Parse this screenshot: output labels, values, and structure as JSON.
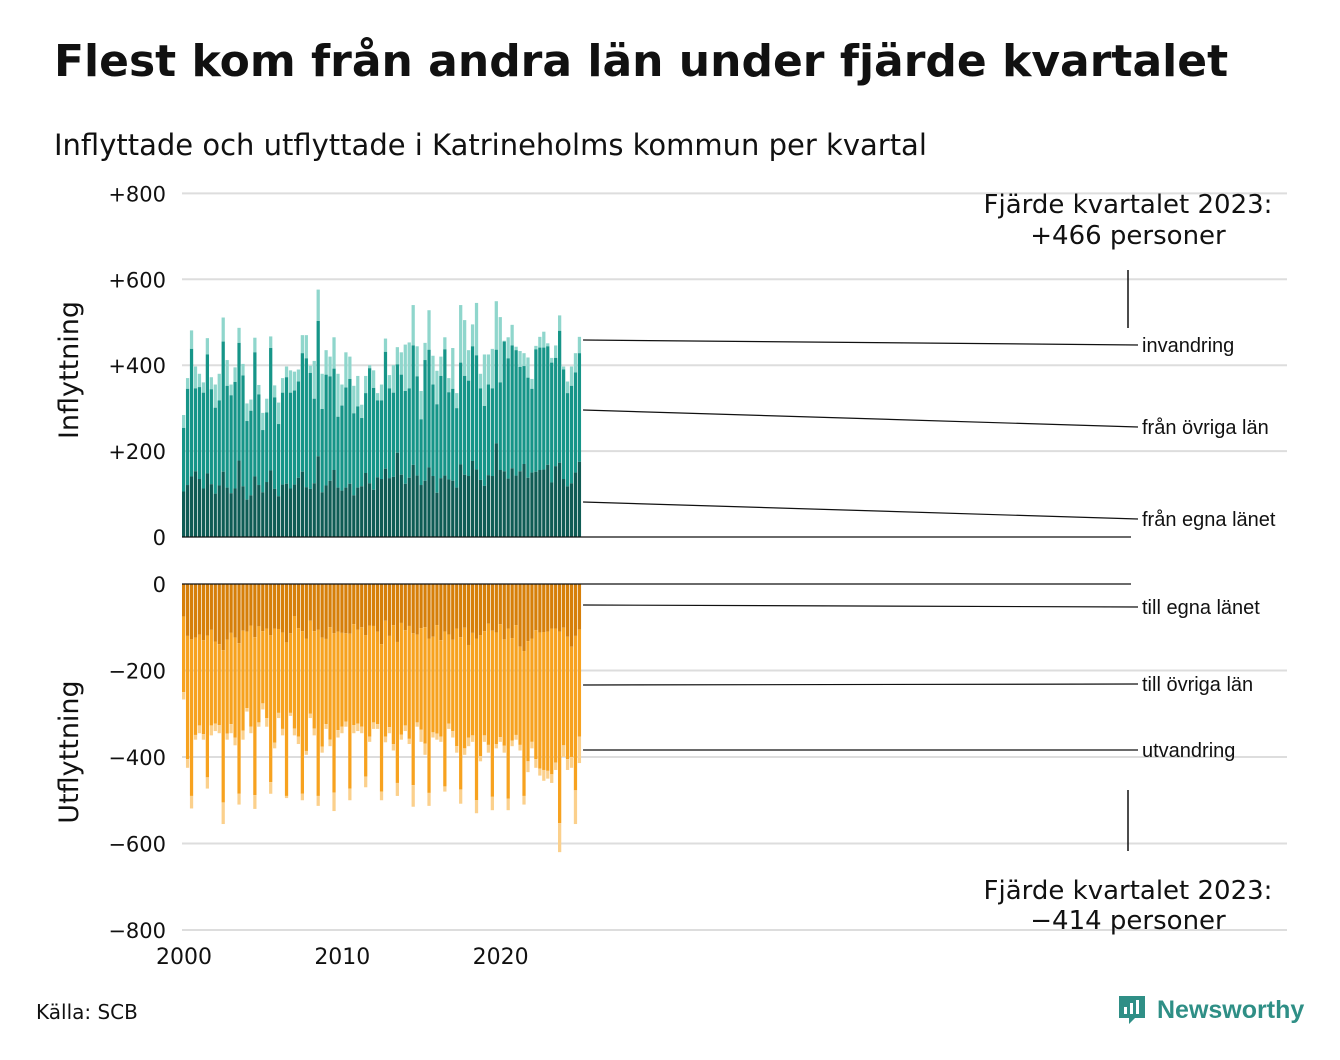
{
  "title": "Flest kom från andra län under fjärde kvartalet",
  "subtitle": "Inflyttade och utflyttade i Katrineholms kommun per kvartal",
  "source": "Källa: SCB",
  "brand": "Newsworthy",
  "colors": {
    "in_egna": "#0f5c55",
    "in_ovriga": "#169588",
    "in_invandring": "#8fd6cc",
    "ut_egna": "#d67f09",
    "ut_ovriga": "#f7a21f",
    "ut_utvandring": "#fbd08c",
    "brand": "#2f8f86"
  },
  "annotations": {
    "top_line1": "Fjärde kvartalet 2023:",
    "top_line2": "+466 personer",
    "bottom_line1": "Fjärde kvartalet 2023:",
    "bottom_line2": "−414 personer"
  },
  "chart_data": {
    "type": "bar",
    "stacked": true,
    "title": "Flest kom från andra län under fjärde kvartalet",
    "subtitle": "Inflyttade och utflyttade i Katrineholms kommun per kvartal",
    "x_start": 2000,
    "x_end": 2023.75,
    "x_unit": "kvartal",
    "x_ticks": [
      {
        "value": 2000,
        "label": "2000"
      },
      {
        "value": 2010,
        "label": "2010"
      },
      {
        "value": 2020,
        "label": "2020"
      }
    ],
    "ylim": [
      -800,
      800
    ],
    "y_ticks": [
      {
        "value": 800,
        "label": "+800"
      },
      {
        "value": 600,
        "label": "+600"
      },
      {
        "value": 400,
        "label": "+400"
      },
      {
        "value": 200,
        "label": "+200"
      },
      {
        "value": 0,
        "label": "0"
      },
      {
        "value": -200,
        "label": "−200"
      },
      {
        "value": -400,
        "label": "−400"
      },
      {
        "value": -600,
        "label": "−600"
      },
      {
        "value": -800,
        "label": "−800"
      }
    ],
    "panels": [
      {
        "name": "inflyttning",
        "ylabel": "Inflyttning"
      },
      {
        "name": "utflyttning",
        "ylabel": "Utflyttning"
      }
    ],
    "inflyttning_totals": [
      284,
      370,
      481,
      397,
      380,
      360,
      463,
      372,
      355,
      380,
      511,
      412,
      355,
      395,
      487,
      403,
      311,
      320,
      464,
      354,
      289,
      322,
      467,
      353,
      313,
      370,
      397,
      388,
      385,
      390,
      470,
      470,
      399,
      410,
      576,
      380,
      435,
      420,
      465,
      380,
      355,
      430,
      420,
      352,
      375,
      308,
      375,
      400,
      388,
      335,
      355,
      462,
      377,
      400,
      442,
      430,
      448,
      453,
      540,
      444,
      340,
      452,
      528,
      422,
      387,
      420,
      465,
      370,
      440,
      335,
      540,
      505,
      435,
      495,
      545,
      380,
      425,
      425,
      438,
      549,
      512,
      457,
      465,
      494,
      443,
      433,
      428,
      418,
      368,
      445,
      466,
      478,
      451,
      417,
      446,
      516,
      397,
      362,
      397,
      428,
      466
    ],
    "inflyttning_ovriga_tops": [
      254,
      345,
      438,
      346,
      349,
      336,
      425,
      344,
      301,
      318,
      455,
      352,
      330,
      361,
      452,
      376,
      270,
      294,
      430,
      332,
      249,
      290,
      440,
      325,
      263,
      336,
      372,
      336,
      341,
      362,
      428,
      416,
      382,
      322,
      503,
      298,
      378,
      374,
      392,
      280,
      306,
      348,
      368,
      288,
      304,
      277,
      335,
      393,
      347,
      318,
      318,
      431,
      346,
      336,
      402,
      378,
      340,
      346,
      446,
      374,
      274,
      412,
      436,
      355,
      309,
      375,
      437,
      337,
      345,
      300,
      406,
      375,
      364,
      444,
      423,
      346,
      305,
      355,
      346,
      436,
      360,
      455,
      416,
      446,
      435,
      396,
      398,
      371,
      345,
      437,
      441,
      441,
      444,
      406,
      417,
      480,
      390,
      335,
      352,
      383,
      428
    ],
    "inflyttning_egna": [
      106,
      121,
      141,
      153,
      135,
      113,
      148,
      123,
      101,
      120,
      152,
      115,
      102,
      113,
      178,
      118,
      87,
      97,
      141,
      121,
      104,
      128,
      155,
      112,
      95,
      122,
      124,
      113,
      122,
      138,
      152,
      116,
      112,
      125,
      188,
      104,
      120,
      131,
      156,
      115,
      108,
      115,
      124,
      97,
      115,
      118,
      149,
      125,
      110,
      139,
      135,
      159,
      137,
      140,
      196,
      145,
      124,
      138,
      168,
      143,
      121,
      131,
      162,
      142,
      103,
      137,
      143,
      134,
      131,
      115,
      169,
      145,
      142,
      177,
      157,
      133,
      119,
      144,
      142,
      218,
      156,
      153,
      136,
      160,
      143,
      153,
      170,
      138,
      150,
      152,
      156,
      157,
      168,
      127,
      165,
      173,
      135,
      118,
      125,
      150,
      175
    ],
    "utflyttning_totals": [
      -267,
      -425,
      -519,
      -360,
      -345,
      -360,
      -473,
      -350,
      -340,
      -345,
      -555,
      -360,
      -345,
      -373,
      -510,
      -360,
      -295,
      -345,
      -520,
      -330,
      -290,
      -330,
      -485,
      -380,
      -310,
      -350,
      -495,
      -305,
      -350,
      -370,
      -500,
      -395,
      -310,
      -350,
      -513,
      -390,
      -335,
      -375,
      -525,
      -355,
      -345,
      -330,
      -500,
      -345,
      -340,
      -345,
      -470,
      -365,
      -335,
      -335,
      -500,
      -366,
      -345,
      -385,
      -490,
      -360,
      -340,
      -370,
      -515,
      -330,
      -365,
      -395,
      -513,
      -355,
      -360,
      -365,
      -480,
      -335,
      -355,
      -390,
      -508,
      -395,
      -375,
      -365,
      -530,
      -410,
      -365,
      -390,
      -523,
      -380,
      -365,
      -390,
      -523,
      -375,
      -360,
      -385,
      -510,
      -435,
      -380,
      -425,
      -443,
      -455,
      -450,
      -460,
      -430,
      -620,
      -400,
      -430,
      -425,
      -555,
      -414
    ],
    "utflyttning_ovriga_bottoms": [
      -250,
      -405,
      -490,
      -349,
      -327,
      -347,
      -447,
      -327,
      -323,
      -326,
      -505,
      -346,
      -324,
      -355,
      -485,
      -339,
      -287,
      -330,
      -488,
      -320,
      -276,
      -310,
      -458,
      -367,
      -298,
      -335,
      -490,
      -298,
      -334,
      -353,
      -485,
      -386,
      -300,
      -334,
      -490,
      -376,
      -324,
      -360,
      -482,
      -338,
      -330,
      -318,
      -473,
      -326,
      -323,
      -330,
      -445,
      -353,
      -320,
      -324,
      -480,
      -353,
      -331,
      -370,
      -460,
      -348,
      -327,
      -358,
      -465,
      -320,
      -337,
      -369,
      -483,
      -343,
      -346,
      -353,
      -468,
      -323,
      -340,
      -375,
      -475,
      -380,
      -355,
      -350,
      -500,
      -398,
      -350,
      -372,
      -492,
      -370,
      -354,
      -374,
      -496,
      -362,
      -349,
      -372,
      -490,
      -410,
      -365,
      -405,
      -427,
      -430,
      -432,
      -440,
      -413,
      -553,
      -373,
      -405,
      -400,
      -477,
      -353
    ],
    "utflyttning_egna": [
      -75,
      -120,
      -128,
      -124,
      -117,
      -130,
      -119,
      -106,
      -133,
      -139,
      -153,
      -129,
      -113,
      -124,
      -137,
      -108,
      -110,
      -96,
      -123,
      -98,
      -109,
      -103,
      -118,
      -103,
      -104,
      -112,
      -135,
      -114,
      -74,
      -102,
      -109,
      -126,
      -85,
      -109,
      -106,
      -124,
      -127,
      -100,
      -114,
      -110,
      -113,
      -114,
      -115,
      -93,
      -106,
      -100,
      -118,
      -96,
      -97,
      -110,
      -139,
      -85,
      -120,
      -95,
      -134,
      -90,
      -107,
      -97,
      -114,
      -117,
      -102,
      -100,
      -126,
      -122,
      -95,
      -130,
      -110,
      -117,
      -129,
      -103,
      -123,
      -101,
      -141,
      -113,
      -126,
      -118,
      -109,
      -92,
      -108,
      -112,
      -93,
      -128,
      -103,
      -125,
      -95,
      -145,
      -155,
      -132,
      -126,
      -107,
      -112,
      -111,
      -110,
      -103,
      -103,
      -110,
      -101,
      -122,
      -145,
      -120,
      -105
    ],
    "series": [
      {
        "name": "från egna länet",
        "panel": "inflyttning"
      },
      {
        "name": "från övriga län",
        "panel": "inflyttning"
      },
      {
        "name": "invandring",
        "panel": "inflyttning"
      },
      {
        "name": "till egna länet",
        "panel": "utflyttning"
      },
      {
        "name": "till övriga län",
        "panel": "utflyttning"
      },
      {
        "name": "utvandring",
        "panel": "utflyttning"
      }
    ],
    "gridlines": true,
    "legend": "right"
  }
}
